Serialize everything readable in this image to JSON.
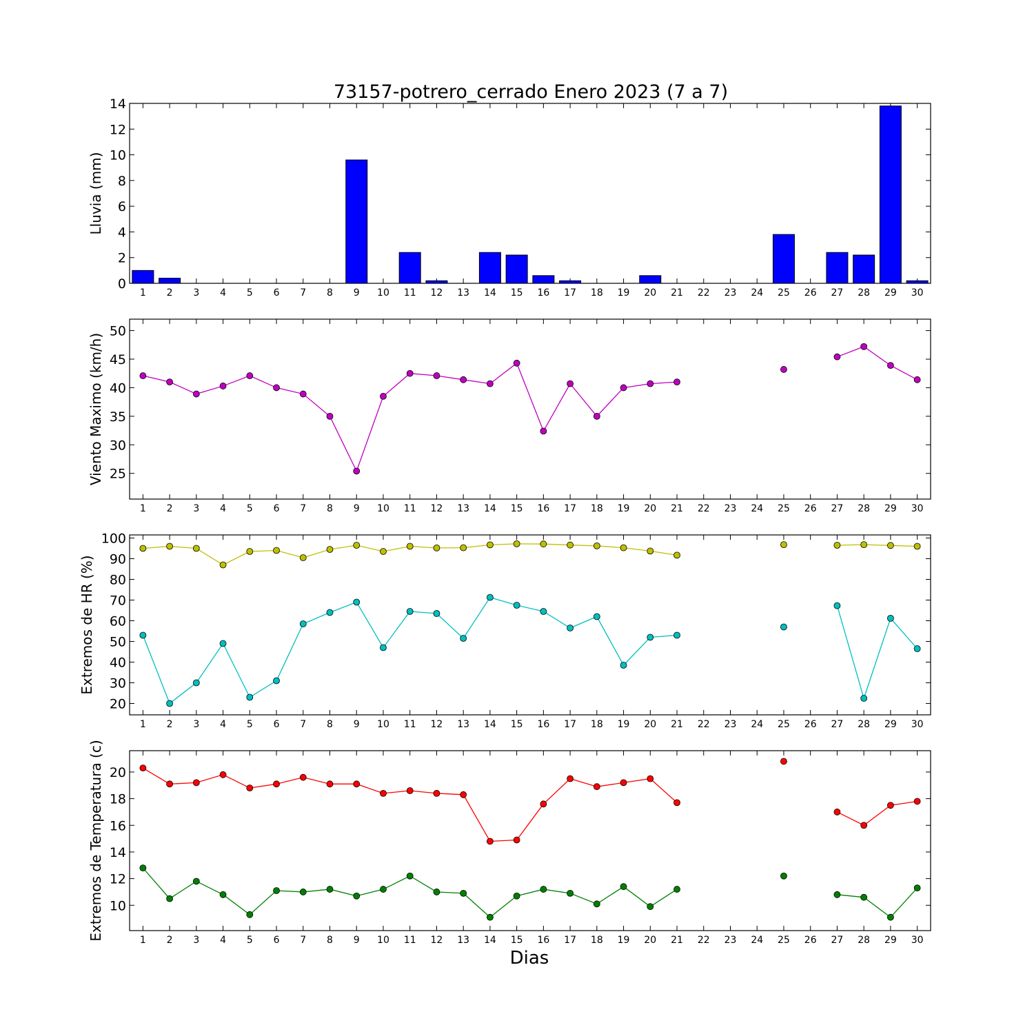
{
  "figure": {
    "title": "73157-potrero_cerrado Enero 2023  (7 a 7)",
    "xlabel": "Dias"
  },
  "chart_data": [
    {
      "type": "bar",
      "ylabel": "Lluvia (mm)",
      "ylim": [
        0,
        14
      ],
      "yticks": [
        0,
        2,
        4,
        6,
        8,
        10,
        12,
        14
      ],
      "xlim": [
        0.5,
        30.5
      ],
      "categories": [
        1,
        2,
        3,
        4,
        5,
        6,
        7,
        8,
        9,
        10,
        11,
        12,
        13,
        14,
        15,
        16,
        17,
        18,
        19,
        20,
        21,
        22,
        23,
        24,
        25,
        26,
        27,
        28,
        29,
        30
      ],
      "series": [
        {
          "color": "#0000ff",
          "values": [
            1.0,
            0.4,
            0,
            0,
            0,
            0,
            0,
            0,
            9.6,
            0,
            2.4,
            0.2,
            0,
            2.4,
            2.2,
            0.6,
            0.2,
            0,
            0,
            0.6,
            0,
            null,
            null,
            null,
            3.8,
            null,
            2.4,
            2.2,
            13.8,
            0.2
          ]
        }
      ]
    },
    {
      "type": "line",
      "ylabel": "Viento Maximo (km/h)",
      "ylim": [
        20.5,
        52
      ],
      "yticks": [
        25,
        30,
        35,
        40,
        45,
        50
      ],
      "xlim": [
        0.5,
        30.5
      ],
      "categories": [
        1,
        2,
        3,
        4,
        5,
        6,
        7,
        8,
        9,
        10,
        11,
        12,
        13,
        14,
        15,
        16,
        17,
        18,
        19,
        20,
        21,
        22,
        23,
        24,
        25,
        26,
        27,
        28,
        29,
        30
      ],
      "series": [
        {
          "color": "#bf00bf",
          "values": [
            42.1,
            41.0,
            38.9,
            40.3,
            42.1,
            40.0,
            38.9,
            35.0,
            25.4,
            38.5,
            42.5,
            42.1,
            41.4,
            40.7,
            44.3,
            32.4,
            40.7,
            35.0,
            40.0,
            40.7,
            41.0,
            null,
            null,
            null,
            43.2,
            null,
            45.4,
            47.2,
            43.9,
            41.4
          ]
        }
      ]
    },
    {
      "type": "line",
      "ylabel": "Extremos de HR (%)",
      "ylim": [
        14.5,
        101.5
      ],
      "yticks": [
        20,
        30,
        40,
        50,
        60,
        70,
        80,
        90,
        100
      ],
      "xlim": [
        0.5,
        30.5
      ],
      "categories": [
        1,
        2,
        3,
        4,
        5,
        6,
        7,
        8,
        9,
        10,
        11,
        12,
        13,
        14,
        15,
        16,
        17,
        18,
        19,
        20,
        21,
        22,
        23,
        24,
        25,
        26,
        27,
        28,
        29,
        30
      ],
      "series": [
        {
          "color": "#bfbf00",
          "values": [
            95,
            96,
            95,
            87,
            93.5,
            94,
            90.5,
            94.5,
            96.5,
            93.5,
            96,
            95.2,
            95.3,
            96.7,
            97.2,
            97.1,
            96.6,
            96.2,
            95.3,
            93.7,
            91.7,
            null,
            null,
            null,
            96.8,
            null,
            96.5,
            96.8,
            96.4,
            96.0
          ]
        },
        {
          "color": "#00bfbf",
          "values": [
            53,
            20,
            30,
            49,
            23,
            31,
            58.5,
            64,
            69,
            47,
            64.5,
            63.5,
            51.5,
            71.3,
            67.5,
            64.5,
            56.5,
            62,
            38.5,
            52,
            53,
            null,
            null,
            null,
            57,
            null,
            67.3,
            22.5,
            61.2,
            46.5
          ]
        }
      ]
    },
    {
      "type": "line",
      "ylabel": "Extremos de Temperatura (c)",
      "ylim": [
        8.1,
        21.6
      ],
      "yticks": [
        10,
        12,
        14,
        16,
        18,
        20
      ],
      "xlim": [
        0.5,
        30.5
      ],
      "categories": [
        1,
        2,
        3,
        4,
        5,
        6,
        7,
        8,
        9,
        10,
        11,
        12,
        13,
        14,
        15,
        16,
        17,
        18,
        19,
        20,
        21,
        22,
        23,
        24,
        25,
        26,
        27,
        28,
        29,
        30
      ],
      "series": [
        {
          "color": "#ff0000",
          "values": [
            20.3,
            19.1,
            19.2,
            19.8,
            18.8,
            19.1,
            19.6,
            19.1,
            19.1,
            18.4,
            18.6,
            18.4,
            18.3,
            14.8,
            14.9,
            17.6,
            19.5,
            18.9,
            19.2,
            19.5,
            17.7,
            null,
            null,
            null,
            20.8,
            null,
            17.0,
            16.0,
            17.5,
            17.8
          ]
        },
        {
          "color": "#008000",
          "values": [
            12.8,
            10.5,
            11.8,
            10.8,
            9.3,
            11.1,
            11.0,
            11.2,
            10.7,
            11.2,
            12.2,
            11.0,
            10.9,
            9.1,
            10.7,
            11.2,
            10.9,
            10.1,
            11.4,
            9.9,
            11.2,
            null,
            null,
            null,
            12.2,
            null,
            10.8,
            10.6,
            9.1,
            11.3
          ]
        }
      ]
    }
  ]
}
